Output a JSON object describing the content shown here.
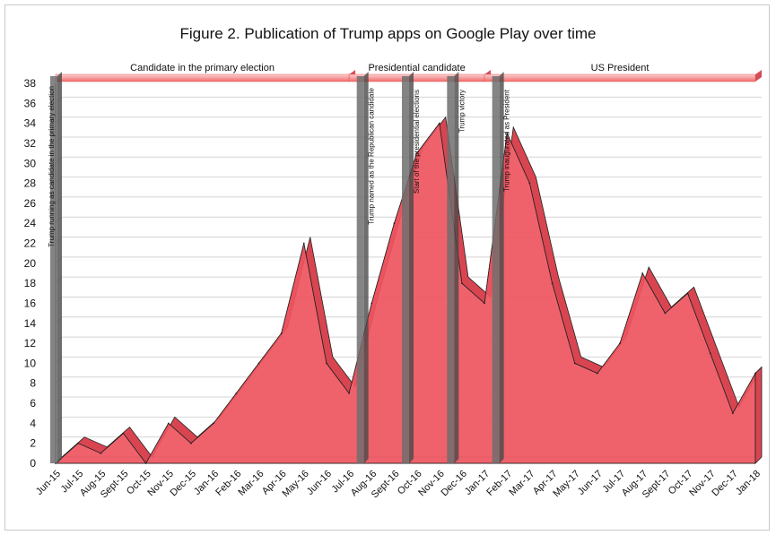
{
  "chart_data": {
    "type": "area",
    "title": "Figure 2. Publication of Trump apps on Google Play over time",
    "xlabel": "",
    "ylabel": "",
    "ylim": [
      0,
      38
    ],
    "yticks": [
      0,
      2,
      4,
      6,
      8,
      10,
      12,
      14,
      16,
      18,
      20,
      22,
      24,
      26,
      28,
      30,
      32,
      34,
      36,
      38
    ],
    "grid": true,
    "categories": [
      "Jun-15",
      "Jul-15",
      "Aug-15",
      "Sept-15",
      "Oct-15",
      "Nov-15",
      "Dec-15",
      "Jan-16",
      "Feb-16",
      "Mar-16",
      "Apr-16",
      "May-16",
      "Jun-16",
      "Jul-16",
      "Aug-16",
      "Sept-16",
      "Oct-16",
      "Nov-16",
      "Dec-16",
      "Jan-17",
      "Feb-17",
      "Mar-17",
      "Apr-17",
      "May-17",
      "Jun-17",
      "Jul-17",
      "Aug-17",
      "Sept-17",
      "Oct-17",
      "Nov-17",
      "Dec-17",
      "Jan-18"
    ],
    "x_tick_labels": [
      "Jun-15",
      "Jul-15",
      "Aug-15",
      "Sept-15",
      "Oct-15",
      "Nov-15",
      "Dec-15",
      "Jan-16",
      "Feb-16",
      "Mar-16",
      "Apr-16",
      "May-16",
      "Jun-16",
      "Jul-16",
      "Aug-16",
      "Sept-16",
      "Oct-16",
      "Nov-16",
      "Dec-16",
      "Jan-17",
      "Feb-17",
      "Mar-17",
      "Apr-17",
      "May-17",
      "Jun-17",
      "Jul-17",
      "Aug-17",
      "Sept-17",
      "Oct-17",
      "Nov-17",
      "Dec-17",
      "Jan-18"
    ],
    "series": [
      {
        "values": [
          0,
          2,
          1,
          3,
          0,
          4,
          2,
          4,
          7,
          10,
          13,
          22,
          10,
          7,
          16,
          24,
          31,
          34,
          18,
          16,
          33,
          28,
          18,
          10,
          9,
          12,
          19,
          15,
          17,
          11,
          5,
          9
        ]
      }
    ],
    "phases": [
      {
        "label": "Candidate in the primary election",
        "start": 0,
        "end": 13
      },
      {
        "label": "Presidential candidate",
        "start": 13,
        "end": 19
      },
      {
        "label": "US President",
        "start": 19,
        "end": 31
      }
    ],
    "events": [
      {
        "label": "Trump running as candidate in the primary election",
        "x": 0
      },
      {
        "label": "Trump named as the Republican candidate",
        "x": 13.5
      },
      {
        "label": "Start of the presidential elections",
        "x": 15.5
      },
      {
        "label": "Trump victory",
        "x": 17.5
      },
      {
        "label": "Trump inaugurated as President",
        "x": 19.5
      }
    ],
    "colors": {
      "area": "#ee5560",
      "area_side": "#d84550",
      "event_bar": "#6f6f6f",
      "phase_band": "#f26a6a",
      "phase_band_top": "#fbd0d0",
      "grid": "#d4d4d4",
      "text": "#111111"
    }
  }
}
